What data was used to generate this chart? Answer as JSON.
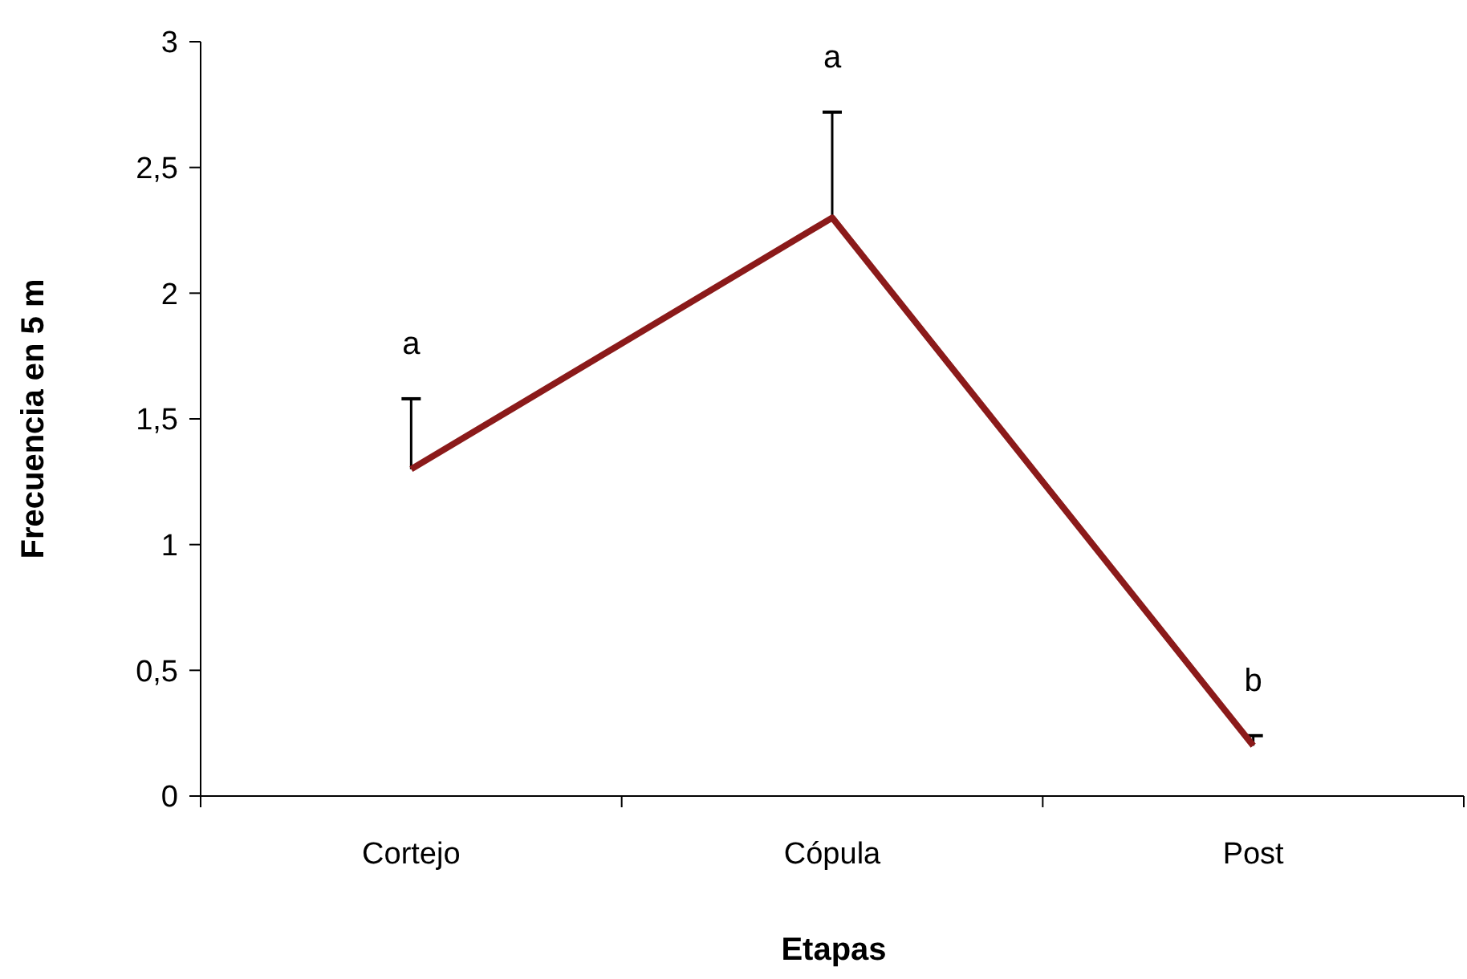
{
  "chart_data": {
    "type": "line",
    "xlabel": "Etapas",
    "ylabel": "Frecuencia en 5 m",
    "categories": [
      "Cortejo",
      "Cópula",
      "Post"
    ],
    "series": [
      {
        "color": "#8b1a1a",
        "values": [
          1.3,
          2.3,
          0.2
        ],
        "errors": [
          [
            1.3,
            1.58
          ],
          [
            2.3,
            2.72
          ],
          [
            0.2,
            0.24
          ]
        ]
      }
    ],
    "ylim": [
      0,
      3
    ],
    "yticks": [
      0,
      {
        "value": 0.5,
        "label": "0,5"
      },
      1,
      {
        "value": 1.5,
        "label": "1,5"
      },
      2,
      {
        "value": 2.5,
        "label": "2,5"
      },
      3
    ],
    "grid": false,
    "marker": "none",
    "line_style": "solid",
    "annotations": [
      "a",
      "a",
      "b"
    ]
  }
}
